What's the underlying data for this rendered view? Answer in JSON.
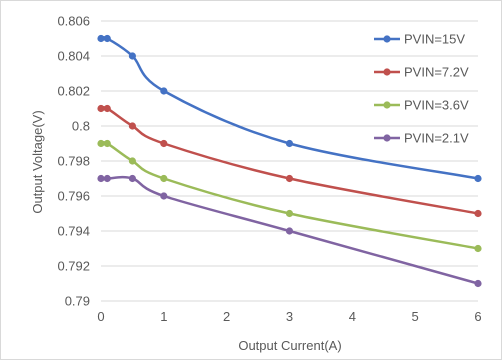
{
  "chart_data": {
    "type": "line",
    "title": "",
    "xlabel": "Output Current(A)",
    "ylabel": "Output Voltage(V)",
    "xlim": [
      0,
      6
    ],
    "ylim": [
      0.79,
      0.806
    ],
    "x_ticks": [
      0,
      1,
      2,
      3,
      4,
      5,
      6
    ],
    "y_ticks": [
      "0.79",
      "0.792",
      "0.794",
      "0.796",
      "0.798",
      "0.8",
      "0.802",
      "0.804",
      "0.806"
    ],
    "grid": true,
    "legend_position": "top-right",
    "x": [
      0,
      0.1,
      0.5,
      1,
      3,
      6
    ],
    "series": [
      {
        "name": "PVIN=15V",
        "color": "#4472c4",
        "values": [
          0.805,
          0.805,
          0.804,
          0.802,
          0.799,
          0.797
        ]
      },
      {
        "name": "PVIN=7.2V",
        "color": "#c0504d",
        "values": [
          0.801,
          0.801,
          0.8,
          0.799,
          0.797,
          0.795
        ]
      },
      {
        "name": "PVIN=3.6V",
        "color": "#9bbb59",
        "values": [
          0.799,
          0.799,
          0.798,
          0.797,
          0.795,
          0.793
        ]
      },
      {
        "name": "PVIN=2.1V",
        "color": "#8064a2",
        "values": [
          0.797,
          0.797,
          0.797,
          0.796,
          0.794,
          0.791
        ]
      }
    ]
  }
}
